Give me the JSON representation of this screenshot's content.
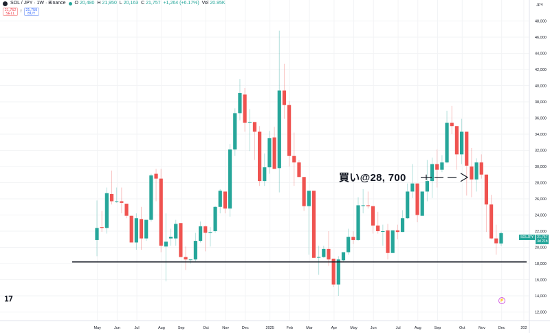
{
  "header": {
    "symbol": "SOL / JPY · 1W · Binance",
    "o_label": "O",
    "o": "20,480",
    "h_label": "H",
    "h": "21,950",
    "l_label": "L",
    "l": "20,163",
    "c_label": "C",
    "c": "21,757",
    "change": "+1,264 (+6.17%)",
    "vol_label": "Vol",
    "vol": "20.95K"
  },
  "trade": {
    "sell_price": "21,752",
    "sell_label": "SELL",
    "spread": "7",
    "buy_price": "21,759",
    "buy_label": "BUY"
  },
  "price_tag": {
    "symbol": "SOLJPY",
    "price": "21,757",
    "countdown": "4d 21h"
  },
  "annotation": {
    "text": "買い@28, 700",
    "arrow": "buy-arrow"
  },
  "logo": "TV",
  "colors": {
    "up": "#26a69a",
    "down": "#ef5350",
    "support_line": "#131722"
  },
  "chart_data": {
    "type": "candlestick",
    "currency_label": "JPY",
    "ylim": [
      11000,
      49000
    ],
    "y_ticks": [
      "48,000",
      "46,000",
      "44,000",
      "42,000",
      "40,000",
      "38,000",
      "36,000",
      "34,000",
      "32,000",
      "30,000",
      "28,000",
      "26,000",
      "24,000",
      "22,000",
      "20,000",
      "18,000",
      "16,000",
      "14,000",
      "12,000"
    ],
    "y_tick_values": [
      48000,
      46000,
      44000,
      42000,
      40000,
      38000,
      36000,
      34000,
      32000,
      30000,
      28000,
      26000,
      24000,
      22000,
      20000,
      18000,
      16000,
      14000,
      12000
    ],
    "x_ticks": [
      {
        "label": "May",
        "week": 1
      },
      {
        "label": "Jun",
        "week": 5
      },
      {
        "label": "Jul",
        "week": 9
      },
      {
        "label": "Aug",
        "week": 14
      },
      {
        "label": "Sep",
        "week": 18
      },
      {
        "label": "Oct",
        "week": 23
      },
      {
        "label": "Nov",
        "week": 27
      },
      {
        "label": "Dec",
        "week": 31
      },
      {
        "label": "2025",
        "week": 36
      },
      {
        "label": "Feb",
        "week": 40
      },
      {
        "label": "Mar",
        "week": 44
      },
      {
        "label": "Apr",
        "week": 49
      },
      {
        "label": "May",
        "week": 53
      },
      {
        "label": "Jun",
        "week": 57
      },
      {
        "label": "Jul",
        "week": 62
      },
      {
        "label": "Aug",
        "week": 66
      },
      {
        "label": "Sep",
        "week": 70
      },
      {
        "label": "Oct",
        "week": 75
      },
      {
        "label": "Nov",
        "week": 79
      },
      {
        "label": "Dec",
        "week": 83
      },
      {
        "label": "202",
        "week": 87.5
      }
    ],
    "support_level": 18200,
    "annotation_price": 28700,
    "candles": [
      [
        20900,
        25800,
        18900,
        22400
      ],
      [
        22500,
        24500,
        21900,
        22400
      ],
      [
        22400,
        27400,
        21700,
        26700
      ],
      [
        26600,
        29500,
        25300,
        25700
      ],
      [
        25700,
        27400,
        25500,
        25700
      ],
      [
        25700,
        27400,
        24200,
        25500
      ],
      [
        25400,
        25400,
        23600,
        23900
      ],
      [
        23900,
        23900,
        20600,
        20600
      ],
      [
        20600,
        24200,
        19700,
        23600
      ],
      [
        23500,
        25000,
        19700,
        21100
      ],
      [
        21100,
        23400,
        20800,
        23400
      ],
      [
        23400,
        29100,
        23200,
        28900
      ],
      [
        29100,
        29700,
        25700,
        28500
      ],
      [
        28500,
        29700,
        19400,
        20200
      ],
      [
        20100,
        24200,
        15800,
        20700
      ],
      [
        21100,
        22300,
        20200,
        21300
      ],
      [
        21100,
        23400,
        20200,
        22900
      ],
      [
        23000,
        23000,
        18800,
        18800
      ],
      [
        18800,
        20100,
        17200,
        18500
      ],
      [
        18500,
        18500,
        18000,
        18500
      ],
      [
        18500,
        21800,
        18300,
        20800
      ],
      [
        20800,
        23200,
        20600,
        22600
      ],
      [
        22600,
        22700,
        19500,
        21800
      ],
      [
        21800,
        22500,
        20100,
        21900
      ],
      [
        22000,
        25100,
        21800,
        25000
      ],
      [
        25000,
        27200,
        24200,
        27000
      ],
      [
        26900,
        26900,
        24200,
        24800
      ],
      [
        24800,
        32800,
        23800,
        32100
      ],
      [
        32100,
        37200,
        31300,
        36600
      ],
      [
        36600,
        40800,
        35700,
        39100
      ],
      [
        38900,
        39700,
        34300,
        35400
      ],
      [
        35400,
        37100,
        31900,
        35500
      ],
      [
        35500,
        35500,
        30800,
        34300
      ],
      [
        34300,
        35000,
        27600,
        28200
      ],
      [
        28200,
        31600,
        27600,
        29900
      ],
      [
        29900,
        34400,
        29100,
        33500
      ],
      [
        33600,
        34900,
        29700,
        29700
      ],
      [
        29800,
        46800,
        26800,
        39400
      ],
      [
        39400,
        42700,
        35900,
        37600
      ],
      [
        37600,
        38100,
        30000,
        31300
      ],
      [
        31300,
        34200,
        27600,
        30500
      ],
      [
        30500,
        30800,
        28700,
        28700
      ],
      [
        28700,
        28700,
        24500,
        25100
      ],
      [
        25100,
        27000,
        19100,
        27000
      ],
      [
        27000,
        27000,
        18700,
        18700
      ],
      [
        18800,
        20200,
        16600,
        18800
      ],
      [
        18800,
        20200,
        18700,
        19800
      ],
      [
        19800,
        22000,
        17700,
        18500
      ],
      [
        18600,
        18600,
        15100,
        15400
      ],
      [
        15400,
        18900,
        14000,
        18500
      ],
      [
        18400,
        19400,
        18300,
        19400
      ],
      [
        19400,
        22300,
        19100,
        21300
      ],
      [
        21300,
        22000,
        20400,
        20900
      ],
      [
        20900,
        26200,
        20800,
        25200
      ],
      [
        25200,
        27200,
        24200,
        25200
      ],
      [
        25200,
        26900,
        24800,
        25100
      ],
      [
        25100,
        25100,
        21700,
        22700
      ],
      [
        22700,
        24400,
        21700,
        22000
      ],
      [
        22000,
        22800,
        20200,
        22000
      ],
      [
        22100,
        22900,
        18500,
        19300
      ],
      [
        19300,
        22100,
        19300,
        22100
      ],
      [
        22100,
        22800,
        21000,
        21900
      ],
      [
        21900,
        24600,
        21900,
        23600
      ],
      [
        23600,
        27900,
        23500,
        26900
      ],
      [
        26900,
        30300,
        26100,
        27900
      ],
      [
        27900,
        27900,
        23100,
        24000
      ],
      [
        23900,
        26900,
        23900,
        26900
      ],
      [
        26900,
        30800,
        25700,
        28200
      ],
      [
        28200,
        31100,
        26100,
        30300
      ],
      [
        30300,
        32100,
        27400,
        29600
      ],
      [
        29600,
        31400,
        29300,
        30500
      ],
      [
        30500,
        36900,
        30400,
        35400
      ],
      [
        35400,
        37500,
        34000,
        35000
      ],
      [
        35000,
        35000,
        29600,
        31500
      ],
      [
        31500,
        35900,
        30300,
        34300
      ],
      [
        34300,
        34300,
        26400,
        30100
      ],
      [
        30000,
        32300,
        26200,
        28400
      ],
      [
        28400,
        31000,
        26900,
        30500
      ],
      [
        30500,
        31500,
        28500,
        29000
      ],
      [
        29000,
        29000,
        21900,
        25300
      ],
      [
        25300,
        26500,
        21000,
        21100
      ],
      [
        21100,
        22800,
        19100,
        20500
      ],
      [
        20480,
        21950,
        20163,
        21757
      ]
    ]
  }
}
